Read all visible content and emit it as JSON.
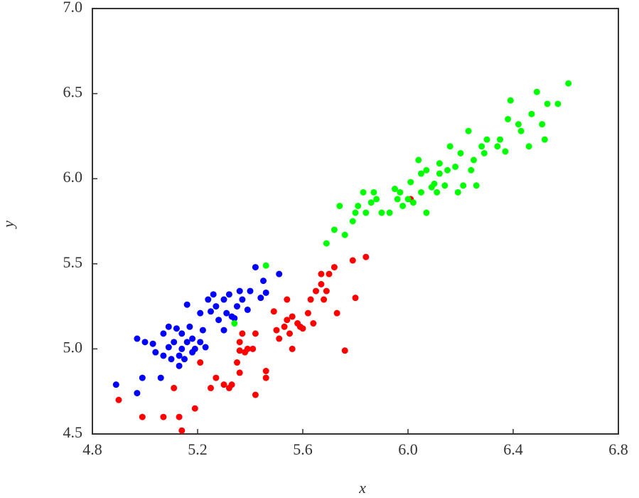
{
  "chart_data": {
    "type": "scatter",
    "x_label": "x",
    "y_label": "y",
    "xlim": [
      4.8,
      6.8
    ],
    "ylim": [
      4.5,
      7.0
    ],
    "xticks": [
      4.8,
      5.2,
      5.6,
      {
        "value": 6.0,
        "label": "6.0"
      },
      6.4,
      6.8
    ],
    "yticks": [
      4.5,
      {
        "value": 5.0,
        "label": "5.0"
      },
      5.5,
      {
        "value": 6.0,
        "label": "6.0"
      },
      6.5,
      {
        "value": 7.0,
        "label": "7.0"
      }
    ],
    "series": [
      {
        "color": "#0000ff",
        "x": [
          4.89,
          4.97,
          4.97,
          4.99,
          5.0,
          5.03,
          5.04,
          5.06,
          5.07,
          5.07,
          5.09,
          5.09,
          5.1,
          5.11,
          5.12,
          5.13,
          5.13,
          5.14,
          5.14,
          5.15,
          5.16,
          5.16,
          5.17,
          5.18,
          5.18,
          5.19,
          5.21,
          5.21,
          5.22,
          5.23,
          5.24,
          5.25,
          5.26,
          5.27,
          5.28,
          5.3,
          5.3,
          5.31,
          5.32,
          5.33,
          5.34,
          5.35,
          5.36,
          5.37,
          5.39,
          5.4,
          5.42,
          5.45,
          5.46,
          5.44,
          5.51
        ],
        "y": [
          4.79,
          4.74,
          5.06,
          4.83,
          5.04,
          5.03,
          4.98,
          4.83,
          4.96,
          5.09,
          5.01,
          5.13,
          4.94,
          5.04,
          5.12,
          4.96,
          4.9,
          5.0,
          5.09,
          4.94,
          5.26,
          5.04,
          5.13,
          4.98,
          5.06,
          5.0,
          5.04,
          5.21,
          5.11,
          5.01,
          5.29,
          5.22,
          5.32,
          5.25,
          5.17,
          5.29,
          5.11,
          5.21,
          5.32,
          5.19,
          5.18,
          5.25,
          5.34,
          5.29,
          5.23,
          5.34,
          5.48,
          5.4,
          5.33,
          5.3,
          5.44
        ]
      },
      {
        "color": "#ff0000",
        "x": [
          4.9,
          4.99,
          5.07,
          5.11,
          5.13,
          5.14,
          5.19,
          5.21,
          5.25,
          5.27,
          5.3,
          5.32,
          5.33,
          5.35,
          5.36,
          5.36,
          5.36,
          5.37,
          5.38,
          5.39,
          5.41,
          5.42,
          5.42,
          5.46,
          5.46,
          5.49,
          5.5,
          5.51,
          5.53,
          5.54,
          5.54,
          5.55,
          5.56,
          5.56,
          5.58,
          5.59,
          5.6,
          5.62,
          5.63,
          5.64,
          5.65,
          5.67,
          5.67,
          5.68,
          5.69,
          5.7,
          5.72,
          5.73,
          5.76,
          5.79,
          5.8,
          5.84,
          6.01
        ],
        "y": [
          4.7,
          4.6,
          4.6,
          4.77,
          4.6,
          4.52,
          4.65,
          4.92,
          4.77,
          4.83,
          4.79,
          4.77,
          4.79,
          4.92,
          4.86,
          4.99,
          5.04,
          5.09,
          4.98,
          5.0,
          5.0,
          4.73,
          5.09,
          4.87,
          4.83,
          5.22,
          5.11,
          5.06,
          5.13,
          5.17,
          5.29,
          5.09,
          5.0,
          5.19,
          5.15,
          5.13,
          5.12,
          5.21,
          5.29,
          5.15,
          5.34,
          5.38,
          5.44,
          5.29,
          5.34,
          5.44,
          5.48,
          5.21,
          4.99,
          5.52,
          5.3,
          5.54,
          5.88
        ]
      },
      {
        "color": "#00ff00",
        "x": [
          5.34,
          5.46,
          5.69,
          5.72,
          5.74,
          5.76,
          5.79,
          5.8,
          5.81,
          5.83,
          5.84,
          5.86,
          5.87,
          5.88,
          5.9,
          5.93,
          5.95,
          5.96,
          5.97,
          5.98,
          6.0,
          6.01,
          6.02,
          6.04,
          6.05,
          6.05,
          6.07,
          6.07,
          6.09,
          6.1,
          6.11,
          6.12,
          6.12,
          6.14,
          6.15,
          6.16,
          6.18,
          6.19,
          6.2,
          6.21,
          6.23,
          6.24,
          6.25,
          6.26,
          6.28,
          6.29,
          6.3,
          6.34,
          6.35,
          6.37,
          6.38,
          6.39,
          6.42,
          6.43,
          6.46,
          6.47,
          6.49,
          6.51,
          6.52,
          6.53,
          6.57,
          6.61
        ],
        "y": [
          5.15,
          5.49,
          5.62,
          5.7,
          5.84,
          5.67,
          5.75,
          5.8,
          5.84,
          5.92,
          5.8,
          5.86,
          5.92,
          5.88,
          5.8,
          5.8,
          5.94,
          5.88,
          5.92,
          5.84,
          5.88,
          5.98,
          5.86,
          6.11,
          5.92,
          6.03,
          6.05,
          5.8,
          5.95,
          5.97,
          5.92,
          6.03,
          6.09,
          5.96,
          6.05,
          6.19,
          6.07,
          5.92,
          6.15,
          5.96,
          6.28,
          6.05,
          6.11,
          5.96,
          6.19,
          6.15,
          6.23,
          6.19,
          6.23,
          6.16,
          6.35,
          6.46,
          6.32,
          6.28,
          6.19,
          6.38,
          6.51,
          6.32,
          6.23,
          6.44,
          6.44,
          6.56
        ]
      }
    ]
  }
}
